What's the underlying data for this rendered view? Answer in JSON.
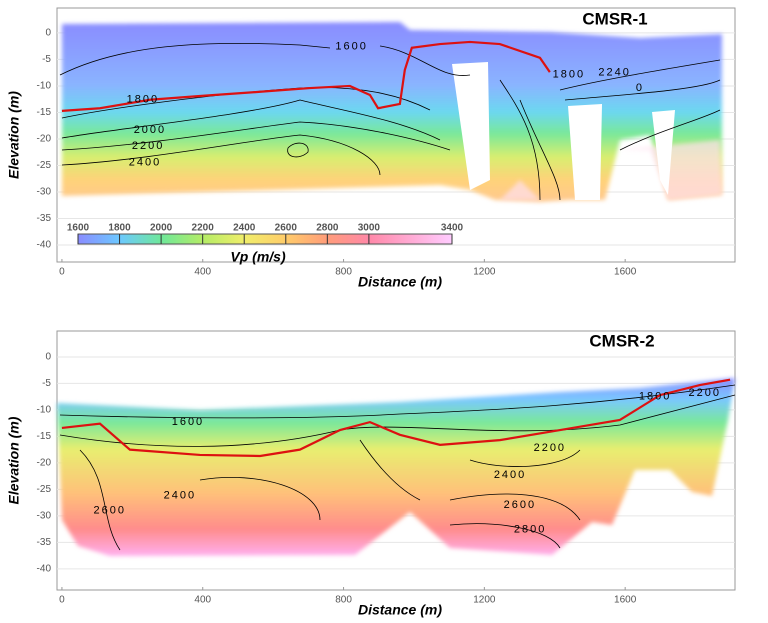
{
  "chart_data": [
    {
      "type": "contour",
      "title": "CMSR-1",
      "xlabel": "Distance (m)",
      "ylabel": "Elevation (m)",
      "xlim": [
        -14,
        1912
      ],
      "ylim": [
        -43.2,
        4.7
      ],
      "xticks": [
        0,
        400,
        800,
        1200,
        1600
      ],
      "yticks": [
        0,
        -5,
        -10,
        -15,
        -20,
        -25,
        -30,
        -35,
        -40
      ],
      "grid": true,
      "series": [
        {
          "color": "#dd1111",
          "x": [
            0,
            108,
            250,
            392,
            563,
            705,
            818,
            875,
            898,
            960,
            974,
            994,
            1074,
            1159,
            1244,
            1358,
            1386
          ],
          "values": [
            -14.7,
            -14.2,
            -12.6,
            -11.9,
            -11.1,
            -10.4,
            -10.0,
            -11.7,
            -14.2,
            -13.4,
            -7.0,
            -2.8,
            -2.1,
            -1.7,
            -2.1,
            -4.7,
            -7.4
          ]
        }
      ],
      "annotations": [
        {
          "text": "1600",
          "x": 823,
          "y": -2.6
        },
        {
          "text": "1800",
          "x": 230,
          "y": -12.6
        },
        {
          "text": "2000",
          "x": 250,
          "y": -18.3
        },
        {
          "text": "2200",
          "x": 245,
          "y": -21.3
        },
        {
          "text": "2400",
          "x": 236,
          "y": -24.5
        },
        {
          "text": "1800",
          "x": 1440,
          "y": -7.9
        },
        {
          "text": "2240",
          "x": 1570,
          "y": -7.5
        },
        {
          "text": "0",
          "x": 1642,
          "y": -10.4
        }
      ],
      "colorbar": {
        "label": "Vp (m/s)",
        "ticks": [
          1600,
          1800,
          2000,
          2200,
          2400,
          2600,
          2800,
          3000,
          3400
        ],
        "colors": [
          "#8a8cff",
          "#6cc8ff",
          "#6ee89a",
          "#b4ec66",
          "#f0ee6a",
          "#ffcc6a",
          "#ff9c7a",
          "#ff88a8",
          "#ffccff"
        ]
      }
    },
    {
      "type": "contour",
      "title": "CMSR-2",
      "xlabel": "Distance (m)",
      "ylabel": "Elevation (m)",
      "xlim": [
        -14,
        1912
      ],
      "ylim": [
        -44,
        4.9
      ],
      "xticks": [
        0,
        400,
        800,
        1200,
        1600
      ],
      "yticks": [
        0,
        -5,
        -10,
        -15,
        -20,
        -25,
        -30,
        -35,
        -40
      ],
      "grid": true,
      "series": [
        {
          "color": "#dd1111",
          "x": [
            0,
            108,
            193,
            392,
            563,
            676,
            790,
            875,
            960,
            1074,
            1244,
            1415,
            1585,
            1699,
            1812,
            1898
          ],
          "values": [
            -13.4,
            -12.6,
            -17.5,
            -18.5,
            -18.7,
            -17.5,
            -13.8,
            -12.3,
            -14.7,
            -16.6,
            -15.7,
            -13.8,
            -11.9,
            -7.2,
            -5.3,
            -4.3
          ]
        }
      ],
      "annotations": [
        {
          "text": "1600",
          "x": 358,
          "y": -12.3
        },
        {
          "text": "1800",
          "x": 1685,
          "y": -7.5
        },
        {
          "text": "2200",
          "x": 1826,
          "y": -6.8
        },
        {
          "text": "2200",
          "x": 1386,
          "y": -17.2
        },
        {
          "text": "2400",
          "x": 1273,
          "y": -22.3
        },
        {
          "text": "2600",
          "x": 1301,
          "y": -28.0
        },
        {
          "text": "2800",
          "x": 1330,
          "y": -32.6
        },
        {
          "text": "2400",
          "x": 335,
          "y": -26.2
        },
        {
          "text": "2600",
          "x": 136,
          "y": -29.0
        }
      ]
    }
  ]
}
